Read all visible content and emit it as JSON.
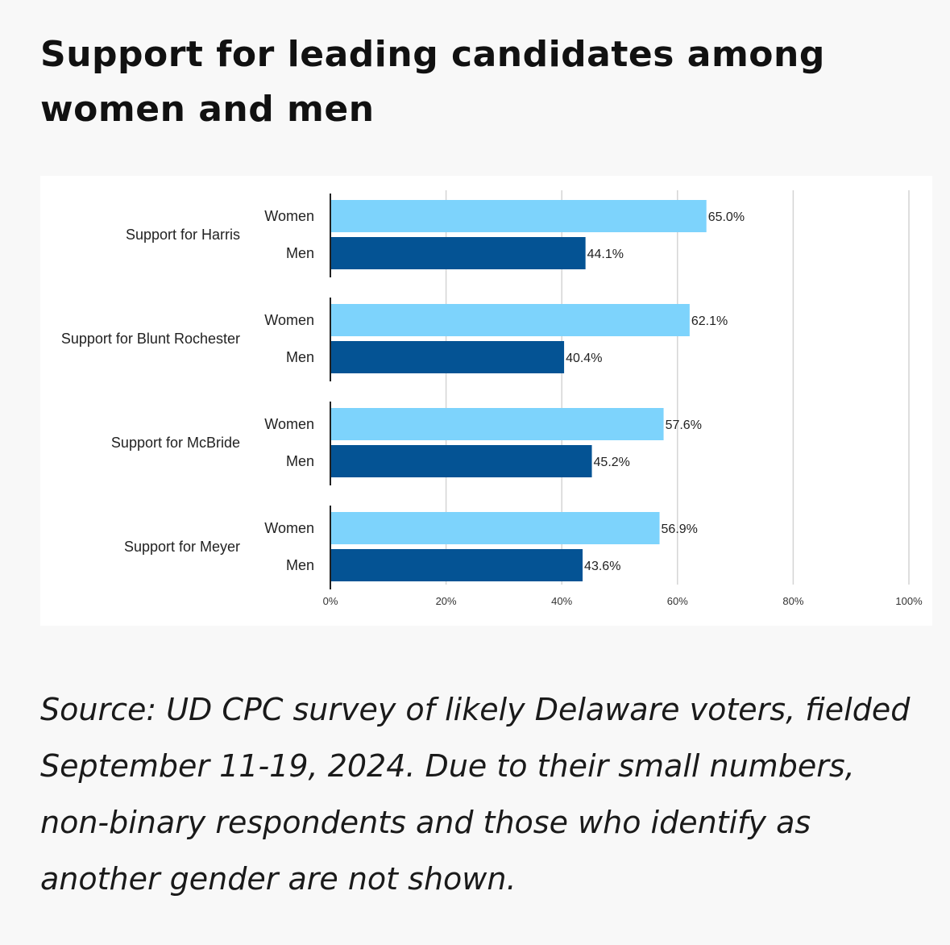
{
  "chart_data": {
    "type": "bar",
    "orientation": "horizontal",
    "title": "Support for leading candidates among women and men",
    "categories": [
      "Support for Harris",
      "Support for Blunt Rochester",
      "Support for McBride",
      "Support for Meyer"
    ],
    "series": [
      {
        "name": "Women",
        "color": "#7dd3fc",
        "values": [
          65.0,
          62.1,
          57.6,
          56.9
        ],
        "labels": [
          "65.0%",
          "62.1%",
          "57.6%",
          "56.9%"
        ]
      },
      {
        "name": "Men",
        "color": "#045394",
        "values": [
          44.1,
          40.4,
          45.2,
          43.6
        ],
        "labels": [
          "44.1%",
          "40.4%",
          "45.2%",
          "43.6%"
        ]
      }
    ],
    "xlim": [
      0,
      100
    ],
    "xticks": [
      0,
      20,
      40,
      60,
      80,
      100
    ],
    "xtick_labels": [
      "0%",
      "20%",
      "40%",
      "60%",
      "80%",
      "100%"
    ],
    "grid": true
  },
  "source": "Source: UD CPC survey of likely Delaware voters, fielded September 11-19, 2024. Due to their small numbers, non-binary respondents and those who identify as another gender are not shown."
}
